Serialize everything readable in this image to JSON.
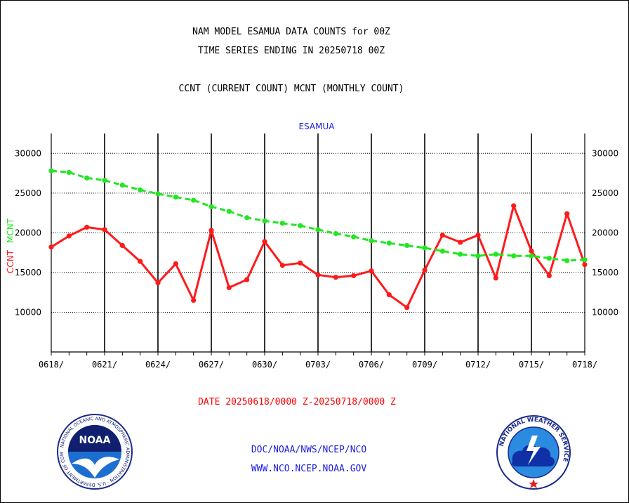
{
  "header": {
    "line1": "NAM MODEL ESAMUA DATA COUNTS for 00Z",
    "line2": "TIME SERIES ENDING IN 20250718 00Z",
    "line3": "CCNT (CURRENT COUNT) MCNT (MONTHLY COUNT)"
  },
  "footer": {
    "date_range": "DATE 20250618/0000 Z-20250718/0000 Z",
    "org": "DOC/NOAA/NWS/NCEP/NCO",
    "url": "WWW.NCO.NCEP.NOAA.GOV"
  },
  "logos": {
    "left": "NOAA",
    "left_ring": "NATIONAL OCEANIC AND ATMOSPHERIC ADMINISTRATION · U.S. DEPARTMENT OF COMMERCE",
    "right_ring": "NATIONAL WEATHER SERVICE"
  },
  "colors": {
    "ccnt": "#ff1a1a",
    "mcnt": "#22e622",
    "station_label": "#1c1ce0"
  },
  "chart_data": {
    "type": "line",
    "title": "ESAMUA",
    "ylabel_parts": [
      {
        "text": "CCNT",
        "series": "CCNT"
      },
      {
        "text": "MCNT",
        "series": "MCNT"
      }
    ],
    "ylim": [
      5000,
      32500
    ],
    "yticks": [
      10000,
      15000,
      20000,
      25000,
      30000
    ],
    "ytick_labels": [
      "10000",
      "15000",
      "20000",
      "25000",
      "30000"
    ],
    "x_days": 30,
    "x_ticks": [
      {
        "day": 0,
        "label": "0618/"
      },
      {
        "day": 3,
        "label": "0621/"
      },
      {
        "day": 6,
        "label": "0624/"
      },
      {
        "day": 9,
        "label": "0627/"
      },
      {
        "day": 12,
        "label": "0630/"
      },
      {
        "day": 15,
        "label": "0703/"
      },
      {
        "day": 18,
        "label": "0706/"
      },
      {
        "day": 21,
        "label": "0709/"
      },
      {
        "day": 24,
        "label": "0712/"
      },
      {
        "day": 27,
        "label": "0715/"
      },
      {
        "day": 30,
        "label": "0718/"
      }
    ],
    "grid": true,
    "series": [
      {
        "name": "CCNT",
        "values": [
          18200,
          19600,
          20700,
          20400,
          18400,
          16400,
          13700,
          16100,
          11500,
          20300,
          13100,
          14100,
          18900,
          15900,
          16200,
          14700,
          14400,
          14600,
          15200,
          12200,
          10600,
          15300,
          19700,
          18800,
          19700,
          14300,
          23400,
          17700,
          14600,
          22400,
          16000
        ]
      },
      {
        "name": "MCNT",
        "values": [
          27800,
          27600,
          26900,
          26600,
          26000,
          25400,
          24900,
          24500,
          24100,
          23300,
          22700,
          21900,
          21500,
          21200,
          20900,
          20400,
          19900,
          19500,
          19000,
          18700,
          18400,
          18100,
          17700,
          17300,
          17100,
          17300,
          17100,
          17100,
          16800,
          16500,
          16600
        ]
      }
    ]
  }
}
